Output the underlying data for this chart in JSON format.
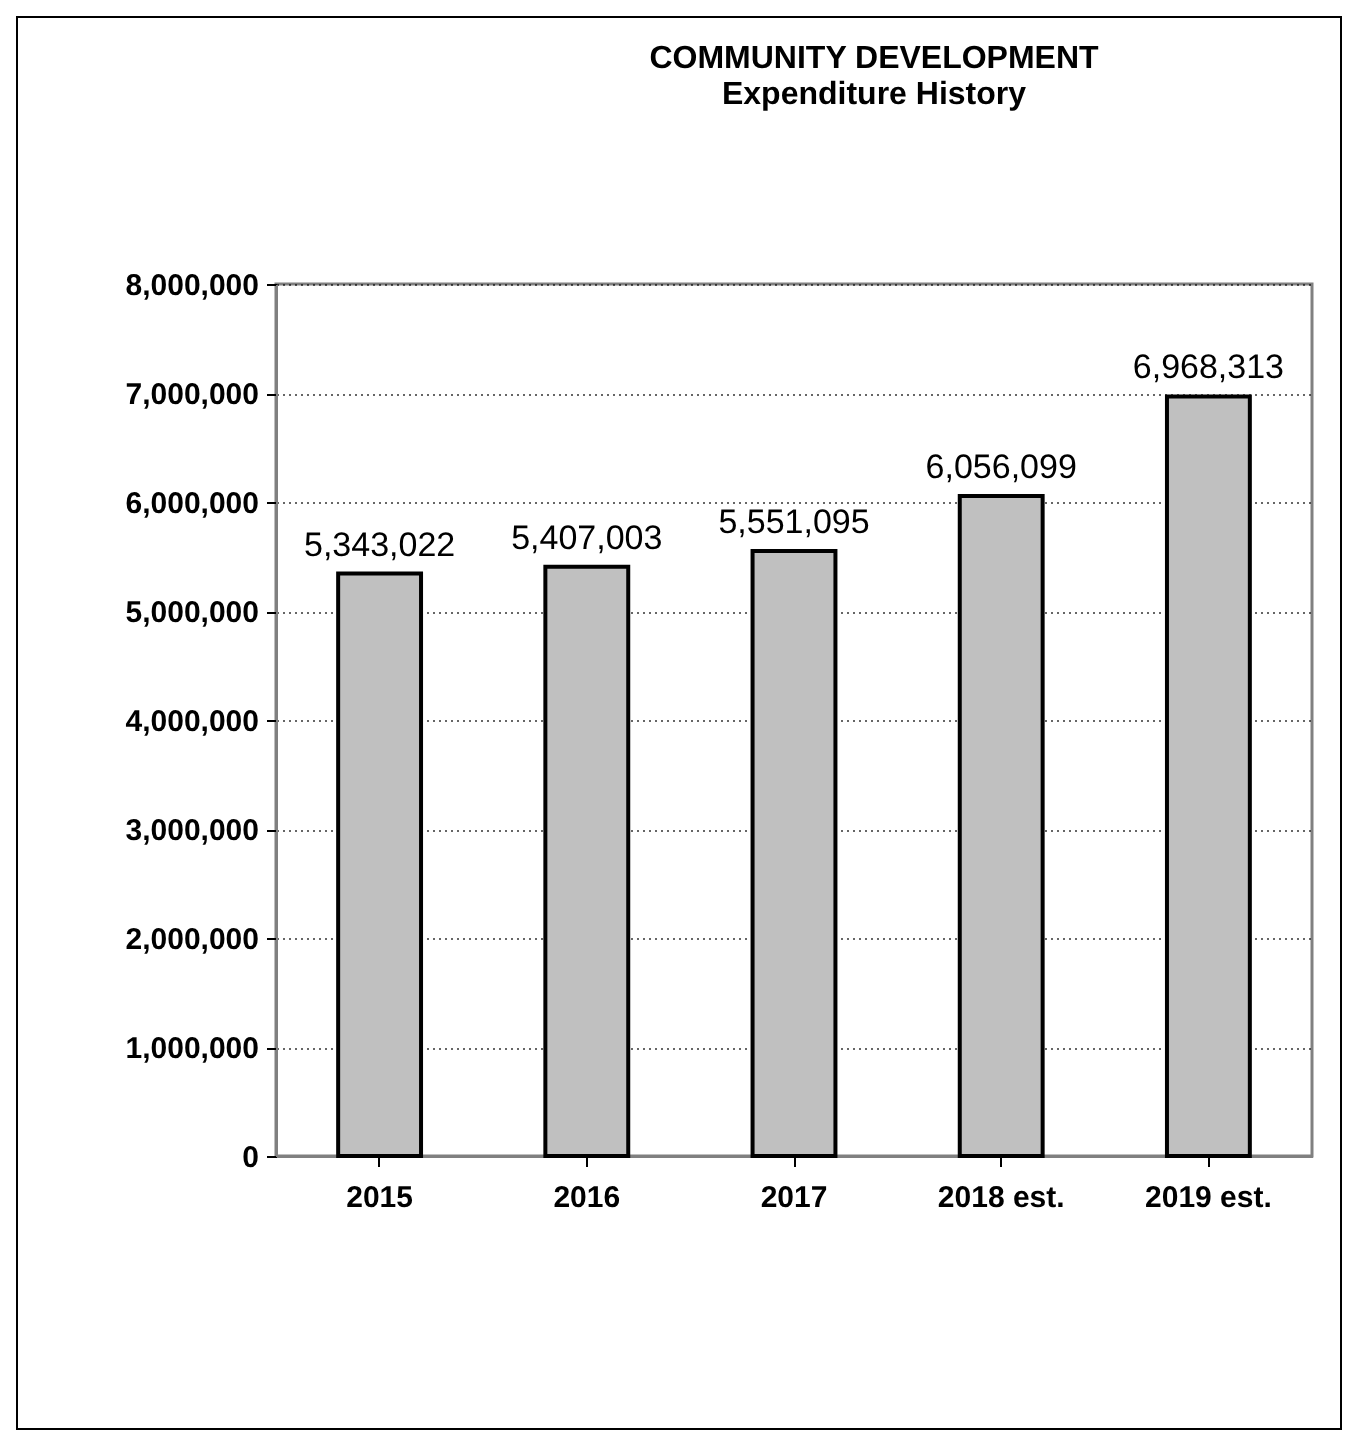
{
  "chart_data": {
    "type": "bar",
    "title": "COMMUNITY DEVELOPMENT",
    "subtitle": "Expenditure History",
    "categories": [
      "2015",
      "2016",
      "2017",
      "2018 est.",
      "2019 est."
    ],
    "values": [
      5343022,
      5407003,
      5551095,
      6056099,
      6968313
    ],
    "color": "#c0c0c0",
    "value_labels": [
      "5,343,022",
      "5,407,003",
      "5,551,095",
      "6,056,099",
      "6,968,313"
    ],
    "ylim": [
      0,
      8000000
    ],
    "yticks": [
      {
        "value": 0,
        "label": "0"
      },
      {
        "value": 1000000,
        "label": "1,000,000"
      },
      {
        "value": 2000000,
        "label": "2,000,000"
      },
      {
        "value": 3000000,
        "label": "3,000,000"
      },
      {
        "value": 4000000,
        "label": "4,000,000"
      },
      {
        "value": 5000000,
        "label": "5,000,000"
      },
      {
        "value": 6000000,
        "label": "6,000,000"
      },
      {
        "value": 7000000,
        "label": "7,000,000"
      },
      {
        "value": 8000000,
        "label": "8,000,000"
      }
    ],
    "grid": "y"
  }
}
